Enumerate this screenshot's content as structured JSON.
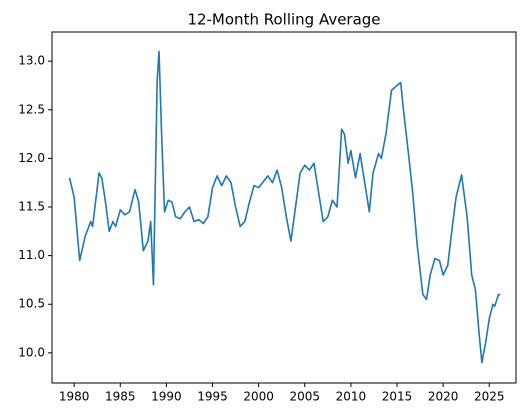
{
  "chart_data": {
    "type": "line",
    "title": "12-Month Rolling Average",
    "color": "#1f77b4",
    "x": [
      1979.5,
      1980,
      1980.6,
      1981.2,
      1981.8,
      1982,
      1982.7,
      1983,
      1983.4,
      1983.8,
      1984.2,
      1984.5,
      1985,
      1985.5,
      1986,
      1986.6,
      1987,
      1987.5,
      1988,
      1988.3,
      1988.6,
      1989.0,
      1989.2,
      1989.5,
      1989.8,
      1990.2,
      1990.6,
      1991,
      1991.5,
      1992,
      1992.5,
      1993,
      1993.5,
      1994,
      1994.5,
      1995,
      1995.5,
      1996,
      1996.5,
      1997,
      1997.5,
      1998,
      1998.5,
      1999,
      1999.5,
      2000,
      2001,
      2001.5,
      2002,
      2002.5,
      2003,
      2003.5,
      2004,
      2004.5,
      2005,
      2005.5,
      2006,
      2006.5,
      2007,
      2007.5,
      2008,
      2008.5,
      2009,
      2009.3,
      2009.7,
      2010,
      2010.5,
      2011,
      2011.5,
      2012,
      2012.4,
      2013,
      2013.3,
      2013.8,
      2014.4,
      2015,
      2015.4,
      2015.7,
      2016.3,
      2016.7,
      2017.2,
      2017.8,
      2018.2,
      2018.6,
      2019.1,
      2019.6,
      2020,
      2020.5,
      2021,
      2021.4,
      2022,
      2022.6,
      2023.1,
      2023.5,
      2023.9,
      2024.2,
      2024.6,
      2025,
      2025.4,
      2025.6,
      2026,
      2026.2
    ],
    "values": [
      11.8,
      11.6,
      10.95,
      11.2,
      11.35,
      11.3,
      11.85,
      11.8,
      11.55,
      11.25,
      11.35,
      11.3,
      11.47,
      11.42,
      11.45,
      11.68,
      11.55,
      11.05,
      11.15,
      11.35,
      10.7,
      12.8,
      13.1,
      12.2,
      11.45,
      11.57,
      11.55,
      11.4,
      11.38,
      11.45,
      11.5,
      11.35,
      11.37,
      11.33,
      11.4,
      11.7,
      11.82,
      11.72,
      11.82,
      11.75,
      11.5,
      11.3,
      11.35,
      11.55,
      11.72,
      11.7,
      11.82,
      11.75,
      11.88,
      11.7,
      11.4,
      11.15,
      11.5,
      11.85,
      11.93,
      11.88,
      11.95,
      11.65,
      11.35,
      11.4,
      11.57,
      11.5,
      12.3,
      12.25,
      11.95,
      12.08,
      11.8,
      12.05,
      11.75,
      11.45,
      11.85,
      12.05,
      12.0,
      12.25,
      12.7,
      12.75,
      12.78,
      12.5,
      12.0,
      11.65,
      11.1,
      10.6,
      10.55,
      10.8,
      10.97,
      10.95,
      10.8,
      10.9,
      11.3,
      11.6,
      11.83,
      11.4,
      10.8,
      10.65,
      10.2,
      9.9,
      10.1,
      10.35,
      10.5,
      10.48,
      10.6,
      10.6
    ],
    "xlim": [
      1977.6,
      2027.9
    ],
    "xticks": [
      1980,
      1985,
      1990,
      1995,
      2000,
      2005,
      2010,
      2015,
      2020,
      2025
    ],
    "ylim": [
      9.69,
      13.3
    ],
    "yticks": [
      {
        "value": 10,
        "label": "10.0"
      },
      10.5,
      {
        "value": 11,
        "label": "11.0"
      },
      11.5,
      {
        "value": 12,
        "label": "12.0"
      },
      12.5,
      {
        "value": 13,
        "label": "13.0"
      }
    ]
  }
}
